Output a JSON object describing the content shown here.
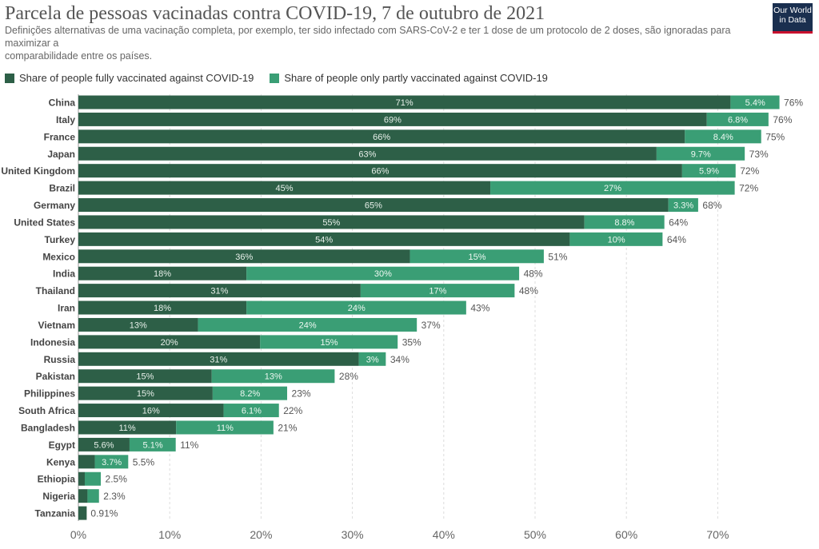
{
  "header": {
    "title": "Parcela de pessoas vacinadas contra COVID-19, 7 de outubro de 2021",
    "subtitle_line1": "Definições alternativas de uma vacinação completa, por exemplo, ter sido infectado com SARS-CoV-2 e ter 1 dose de um protocolo de 2 doses, são ignoradas para maximizar a",
    "subtitle_line2": "comparabilidade entre os países.",
    "logo": "Our World in Data"
  },
  "colors": {
    "full": "#2d5f47",
    "partial": "#3a9e75",
    "grid": "#ddd"
  },
  "chart_data": {
    "type": "bar",
    "orientation": "horizontal",
    "stacked": true,
    "title": "Parcela de pessoas vacinadas contra COVID-19, 7 de outubro de 2021",
    "xlim": [
      0,
      75
    ],
    "xticks": [
      0,
      10,
      20,
      30,
      40,
      50,
      60,
      70
    ],
    "xtick_labels": [
      "0%",
      "10%",
      "20%",
      "30%",
      "40%",
      "50%",
      "60%",
      "70%"
    ],
    "legend": {
      "placement": "top-left",
      "entries": [
        "Share of people fully vaccinated against COVID-19",
        "Share of people only partly vaccinated against COVID-19"
      ]
    },
    "categories": [
      "China",
      "Italy",
      "France",
      "Japan",
      "United Kingdom",
      "Brazil",
      "Germany",
      "United States",
      "Turkey",
      "Mexico",
      "India",
      "Thailand",
      "Iran",
      "Vietnam",
      "Indonesia",
      "Russia",
      "Pakistan",
      "Philippines",
      "South Africa",
      "Bangladesh",
      "Egypt",
      "Kenya",
      "Ethiopia",
      "Nigeria",
      "Tanzania"
    ],
    "series": [
      {
        "name": "Share of people fully vaccinated against COVID-19",
        "values": [
          71.4,
          68.8,
          66.4,
          63.3,
          66.1,
          45.1,
          64.6,
          55.4,
          53.8,
          36.3,
          18.4,
          30.9,
          18.4,
          13.1,
          19.9,
          30.7,
          14.6,
          14.7,
          15.9,
          10.7,
          5.6,
          1.8,
          0.7,
          1.0,
          0.91
        ],
        "labels": [
          "71%",
          "69%",
          "66%",
          "63%",
          "66%",
          "45%",
          "65%",
          "55%",
          "54%",
          "36%",
          "18%",
          "31%",
          "18%",
          "13%",
          "20%",
          "31%",
          "15%",
          "15%",
          "16%",
          "11%",
          "5.6%",
          null,
          null,
          null,
          null
        ]
      },
      {
        "name": "Share of people only partly vaccinated against COVID-19",
        "values": [
          5.4,
          6.8,
          8.4,
          9.7,
          5.9,
          26.8,
          3.3,
          8.8,
          10.2,
          14.7,
          29.9,
          16.9,
          24.1,
          24.0,
          15.1,
          3.0,
          13.5,
          8.2,
          6.1,
          10.7,
          5.1,
          3.7,
          1.8,
          1.3,
          0
        ],
        "labels": [
          "5.4%",
          "6.8%",
          "8.4%",
          "9.7%",
          "5.9%",
          "27%",
          "3.3%",
          "8.8%",
          "10%",
          "15%",
          "30%",
          "17%",
          "24%",
          "24%",
          "15%",
          "3%",
          "13%",
          "8.2%",
          "6.1%",
          "11%",
          "5.1%",
          "3.7%",
          null,
          null,
          null
        ]
      }
    ],
    "totals": [
      "76%",
      "76%",
      "75%",
      "73%",
      "72%",
      "72%",
      "68%",
      "64%",
      "64%",
      "51%",
      "48%",
      "48%",
      "43%",
      "37%",
      "35%",
      "34%",
      "28%",
      "23%",
      "22%",
      "21%",
      "11%",
      "5.5%",
      "2.5%",
      "2.3%",
      "0.91%"
    ]
  }
}
